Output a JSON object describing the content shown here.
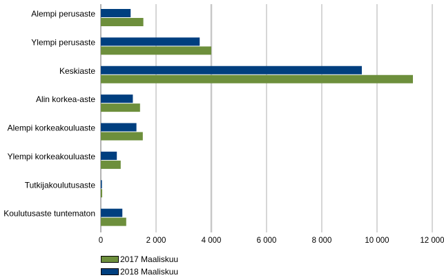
{
  "chart_data": {
    "type": "bar",
    "orientation": "horizontal",
    "categories": [
      "Alempi perusaste",
      "Ylempi perusaste",
      "Keskiaste",
      "Alin korkea-aste",
      "Alempi korkeakouluaste",
      "Ylempi korkeakouluaste",
      "Tutkijakoulutusaste",
      "Koulutusaste tuntematon"
    ],
    "series": [
      {
        "name": "2018 Maaliskuu",
        "color": "#003f7f",
        "values": [
          1080,
          3580,
          9450,
          1160,
          1290,
          580,
          40,
          780
        ]
      },
      {
        "name": "2017 Maaliskuu",
        "color": "#6d8f3c",
        "values": [
          1540,
          4000,
          11300,
          1420,
          1520,
          720,
          50,
          920
        ]
      }
    ],
    "xlim": [
      0,
      12000
    ],
    "xticks": [
      0,
      2000,
      4000,
      6000,
      8000,
      10000,
      12000
    ],
    "xtick_labels": [
      "0",
      "2 000",
      "4 000",
      "6 000",
      "8 000",
      "10 000",
      "12 000"
    ],
    "grid": "vertical",
    "legend": {
      "placement": "bottom-left",
      "entries": [
        {
          "label": "2017 Maaliskuu",
          "color": "#6d8f3c"
        },
        {
          "label": "2018 Maaliskuu",
          "color": "#003f7f"
        }
      ]
    }
  }
}
